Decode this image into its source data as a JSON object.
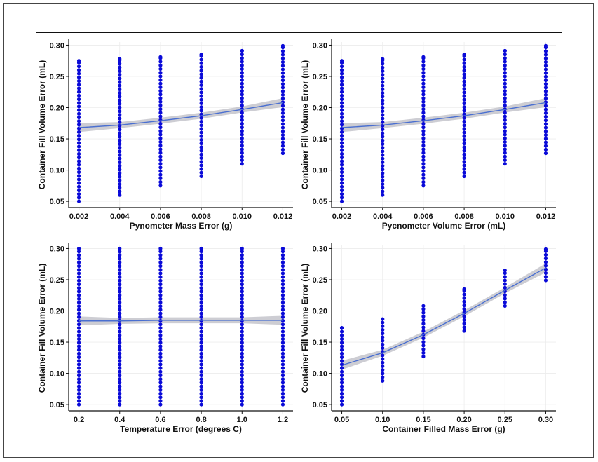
{
  "figure": {
    "colors": {
      "points": "#0a0ad8",
      "fit_line": "#4a6fd0",
      "band": "#b8b8c0"
    }
  },
  "chart_data": [
    {
      "type": "scatter",
      "xlabel": "Pynometer Mass Error (g)",
      "ylabel": "Container Fill Volume Error (mL)",
      "x_ticks": [
        "0.002",
        "0.004",
        "0.006",
        "0.008",
        "0.010",
        "0.012"
      ],
      "y_ticks": [
        "0.05",
        "0.10",
        "0.15",
        "0.20",
        "0.25",
        "0.30"
      ],
      "xlim": [
        0.0015,
        0.0125
      ],
      "ylim": [
        0.04,
        0.305
      ],
      "grid": true,
      "point_columns": [
        {
          "x": 0.002,
          "y_min": 0.05,
          "y_max": 0.275
        },
        {
          "x": 0.004,
          "y_min": 0.06,
          "y_max": 0.278
        },
        {
          "x": 0.006,
          "y_min": 0.075,
          "y_max": 0.281
        },
        {
          "x": 0.008,
          "y_min": 0.09,
          "y_max": 0.285
        },
        {
          "x": 0.01,
          "y_min": 0.11,
          "y_max": 0.291
        },
        {
          "x": 0.012,
          "y_min": 0.127,
          "y_max": 0.299
        }
      ],
      "fit": {
        "x": [
          0.002,
          0.004,
          0.006,
          0.008,
          0.01,
          0.012
        ],
        "y": [
          0.168,
          0.172,
          0.179,
          0.187,
          0.197,
          0.208
        ]
      }
    },
    {
      "type": "scatter",
      "xlabel": "Pycnometer Volume Error (mL)",
      "ylabel": "Container Fill Volume Error (mL)",
      "x_ticks": [
        "0.002",
        "0.004",
        "0.006",
        "0.008",
        "0.010",
        "0.012"
      ],
      "y_ticks": [
        "0.05",
        "0.10",
        "0.15",
        "0.20",
        "0.25",
        "0.30"
      ],
      "xlim": [
        0.0015,
        0.0125
      ],
      "ylim": [
        0.04,
        0.305
      ],
      "grid": true,
      "point_columns": [
        {
          "x": 0.002,
          "y_min": 0.05,
          "y_max": 0.275
        },
        {
          "x": 0.004,
          "y_min": 0.06,
          "y_max": 0.278
        },
        {
          "x": 0.006,
          "y_min": 0.075,
          "y_max": 0.281
        },
        {
          "x": 0.008,
          "y_min": 0.09,
          "y_max": 0.285
        },
        {
          "x": 0.01,
          "y_min": 0.11,
          "y_max": 0.291
        },
        {
          "x": 0.012,
          "y_min": 0.127,
          "y_max": 0.299
        }
      ],
      "fit": {
        "x": [
          0.002,
          0.004,
          0.006,
          0.008,
          0.01,
          0.012
        ],
        "y": [
          0.168,
          0.172,
          0.179,
          0.187,
          0.197,
          0.208
        ]
      }
    },
    {
      "type": "scatter",
      "xlabel": "Temperature Error (degrees C)",
      "ylabel": "Container Fill Volume Error (mL)",
      "x_ticks": [
        "0.2",
        "0.4",
        "0.6",
        "0.8",
        "1.0",
        "1.2"
      ],
      "y_ticks": [
        "0.05",
        "0.10",
        "0.15",
        "0.20",
        "0.25",
        "0.30"
      ],
      "xlim": [
        0.15,
        1.25
      ],
      "ylim": [
        0.04,
        0.305
      ],
      "grid": true,
      "point_columns": [
        {
          "x": 0.2,
          "y_min": 0.05,
          "y_max": 0.3
        },
        {
          "x": 0.4,
          "y_min": 0.05,
          "y_max": 0.3
        },
        {
          "x": 0.6,
          "y_min": 0.05,
          "y_max": 0.3
        },
        {
          "x": 0.8,
          "y_min": 0.05,
          "y_max": 0.3
        },
        {
          "x": 1.0,
          "y_min": 0.05,
          "y_max": 0.3
        },
        {
          "x": 1.2,
          "y_min": 0.05,
          "y_max": 0.3
        }
      ],
      "fit": {
        "x": [
          0.2,
          0.4,
          0.6,
          0.8,
          1.0,
          1.2
        ],
        "y": [
          0.184,
          0.184,
          0.185,
          0.185,
          0.185,
          0.185
        ]
      }
    },
    {
      "type": "scatter",
      "xlabel": "Container Filled Mass Error (g)",
      "ylabel": "Container Fill Volume Error (mL)",
      "x_ticks": [
        "0.05",
        "0.10",
        "0.15",
        "0.20",
        "0.25",
        "0.30"
      ],
      "y_ticks": [
        "0.05",
        "0.10",
        "0.15",
        "0.20",
        "0.25",
        "0.30"
      ],
      "xlim": [
        0.0375,
        0.3125
      ],
      "ylim": [
        0.04,
        0.305
      ],
      "grid": true,
      "point_columns": [
        {
          "x": 0.05,
          "y_min": 0.05,
          "y_max": 0.173
        },
        {
          "x": 0.1,
          "y_min": 0.088,
          "y_max": 0.187
        },
        {
          "x": 0.15,
          "y_min": 0.127,
          "y_max": 0.208
        },
        {
          "x": 0.2,
          "y_min": 0.168,
          "y_max": 0.235
        },
        {
          "x": 0.25,
          "y_min": 0.208,
          "y_max": 0.265
        },
        {
          "x": 0.3,
          "y_min": 0.249,
          "y_max": 0.299
        }
      ],
      "fit": {
        "x": [
          0.05,
          0.1,
          0.15,
          0.2,
          0.25,
          0.3
        ],
        "y": [
          0.113,
          0.133,
          0.162,
          0.196,
          0.233,
          0.269
        ]
      }
    }
  ]
}
